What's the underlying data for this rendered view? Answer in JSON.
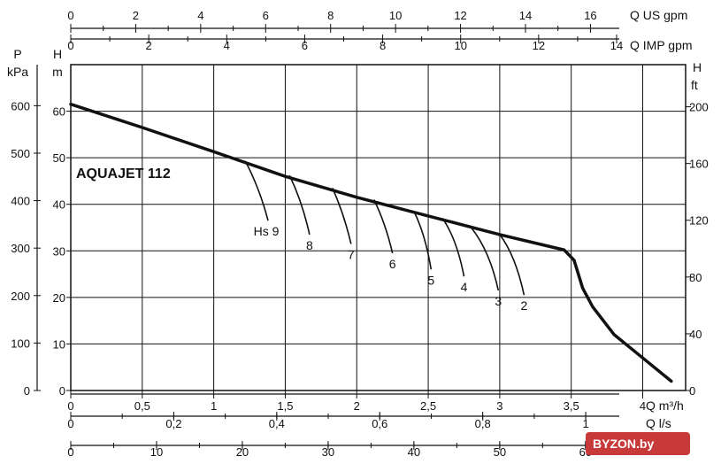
{
  "chart_data": {
    "type": "line",
    "title": "",
    "model_label": "AQUAJET 112",
    "watermark": "BYZON.by",
    "axes": {
      "flow_m3h": {
        "label": "Q m³/h",
        "range": [
          0,
          4.3
        ],
        "ticks": [
          "0",
          "0,5",
          "1",
          "1,5",
          "2",
          "2,5",
          "3",
          "3,5",
          "4"
        ]
      },
      "flow_ls": {
        "label": "Q l/s",
        "range": [
          0,
          1.194
        ],
        "ticks": [
          "0",
          "0,2",
          "0,4",
          "0,6",
          "0,8",
          "1"
        ]
      },
      "flow_lmin": {
        "label": "",
        "range": [
          0,
          71.67
        ],
        "ticks": [
          "0",
          "10",
          "20",
          "30",
          "40",
          "50",
          "60"
        ]
      },
      "flow_usgpm": {
        "label": "Q US gpm",
        "range": [
          0,
          18.93
        ],
        "ticks": [
          "0",
          "2",
          "4",
          "6",
          "8",
          "10",
          "12",
          "14",
          "16"
        ]
      },
      "flow_impgpm": {
        "label": "Q IMP gpm",
        "range": [
          0,
          15.77
        ],
        "ticks": [
          "0",
          "2",
          "4",
          "6",
          "8",
          "10",
          "12",
          "14"
        ]
      },
      "head_m": {
        "label_top": "H",
        "label_unit": "m",
        "range": [
          0,
          70
        ],
        "ticks": [
          "0",
          "10",
          "20",
          "30",
          "40",
          "50",
          "60"
        ]
      },
      "pressure_kpa": {
        "label_top": "P",
        "label_unit": "kPa",
        "range": [
          0,
          686.5
        ],
        "ticks": [
          "0",
          "100",
          "200",
          "300",
          "400",
          "500",
          "600"
        ]
      },
      "head_ft": {
        "label_top": "H",
        "label_unit": "ft",
        "range": [
          0,
          229.7
        ],
        "ticks": [
          "0",
          "40",
          "80",
          "120",
          "160",
          "200"
        ]
      }
    },
    "grid": true,
    "series": [
      {
        "name": "",
        "x": [
          0,
          0.5,
          1.0,
          1.5,
          2.0,
          2.5,
          3.0,
          3.3,
          3.45,
          3.52,
          3.58,
          3.65,
          3.8,
          4.0,
          4.2
        ],
        "y": [
          61.5,
          56.5,
          51.3,
          46.0,
          41.5,
          37.5,
          33.5,
          31.3,
          30.2,
          28.0,
          22.0,
          18.0,
          12.0,
          7.0,
          2.0
        ]
      }
    ],
    "suction_lift_curves": [
      {
        "label": "Hs 9",
        "x": [
          1.22,
          1.32,
          1.38
        ],
        "y": [
          49.3,
          43.5,
          36.5
        ]
      },
      {
        "label": "8",
        "x": [
          1.53,
          1.62,
          1.67
        ],
        "y": [
          46.2,
          40.5,
          33.5
        ]
      },
      {
        "label": "7",
        "x": [
          1.83,
          1.91,
          1.96
        ],
        "y": [
          43.5,
          38.0,
          31.5
        ]
      },
      {
        "label": "6",
        "x": [
          2.12,
          2.2,
          2.25
        ],
        "y": [
          41.0,
          36.0,
          29.5
        ]
      },
      {
        "label": "5",
        "x": [
          2.4,
          2.48,
          2.52
        ],
        "y": [
          38.5,
          33.5,
          26.0
        ]
      },
      {
        "label": "4",
        "x": [
          2.6,
          2.7,
          2.75
        ],
        "y": [
          37.0,
          32.5,
          24.5
        ]
      },
      {
        "label": "3",
        "x": [
          2.8,
          2.93,
          2.99
        ],
        "y": [
          35.0,
          30.0,
          21.5
        ]
      },
      {
        "label": "2",
        "x": [
          3.0,
          3.11,
          3.17
        ],
        "y": [
          33.5,
          29.0,
          20.5
        ]
      }
    ]
  }
}
